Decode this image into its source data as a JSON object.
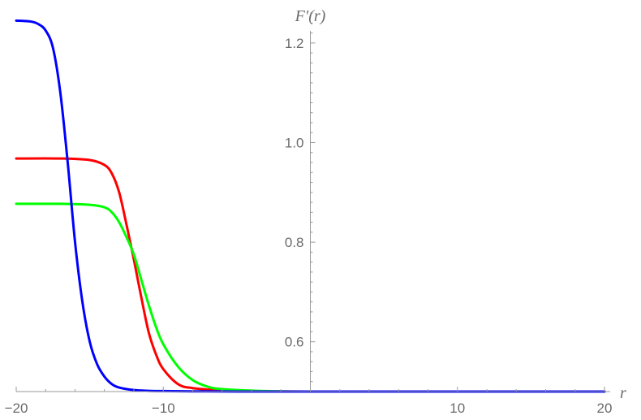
{
  "chart_data": {
    "type": "line",
    "title": "",
    "xlabel": "r",
    "ylabel": "F′(r)",
    "xlim": [
      -20,
      20
    ],
    "ylim": [
      0.5,
      1.27
    ],
    "x_ticks": [
      -20,
      -10,
      10,
      20
    ],
    "x_tick_labels": [
      "−20",
      "−10",
      "10",
      "20"
    ],
    "y_ticks": [
      0.6,
      0.8,
      1.0,
      1.2
    ],
    "y_tick_labels": [
      "0.6",
      "0.8",
      "1.0",
      "1.2"
    ],
    "grid": false,
    "legend": "none",
    "series": [
      {
        "color": "#ff0000",
        "x": [
          -20,
          -17,
          -15,
          -14,
          -13.5,
          -13,
          -12.5,
          -12.25,
          -12,
          -11.5,
          -11,
          -10.5,
          -10,
          -9,
          -8,
          -6,
          -3,
          0,
          5,
          10,
          15,
          20
        ],
        "y": [
          0.968,
          0.968,
          0.965,
          0.955,
          0.938,
          0.9,
          0.835,
          0.8,
          0.765,
          0.69,
          0.62,
          0.575,
          0.545,
          0.515,
          0.507,
          0.5025,
          0.5005,
          0.5,
          0.5,
          0.5,
          0.5,
          0.5
        ]
      },
      {
        "color": "#00ff00",
        "x": [
          -20,
          -17,
          -15,
          -14,
          -13.5,
          -13,
          -12.5,
          -12,
          -11.5,
          -11,
          -10.5,
          -10,
          -9,
          -8,
          -7,
          -6,
          -3,
          0,
          5,
          10,
          15,
          20
        ],
        "y": [
          0.877,
          0.877,
          0.875,
          0.87,
          0.86,
          0.84,
          0.81,
          0.775,
          0.725,
          0.675,
          0.63,
          0.595,
          0.55,
          0.523,
          0.51,
          0.505,
          0.501,
          0.5,
          0.5,
          0.5,
          0.5,
          0.5
        ]
      },
      {
        "color": "#0000ff",
        "x": [
          -20,
          -19,
          -18.5,
          -18,
          -17.5,
          -17,
          -16.5,
          -16,
          -15.5,
          -15,
          -14.5,
          -14,
          -13.5,
          -13,
          -12,
          -11,
          -10,
          -8,
          -5,
          0,
          5,
          10,
          15,
          20
        ],
        "y": [
          1.245,
          1.243,
          1.238,
          1.225,
          1.19,
          1.1,
          0.96,
          0.8,
          0.68,
          0.6,
          0.555,
          0.53,
          0.515,
          0.508,
          0.503,
          0.5015,
          0.501,
          0.5005,
          0.5,
          0.5,
          0.5,
          0.5,
          0.5,
          0.5
        ]
      }
    ]
  }
}
